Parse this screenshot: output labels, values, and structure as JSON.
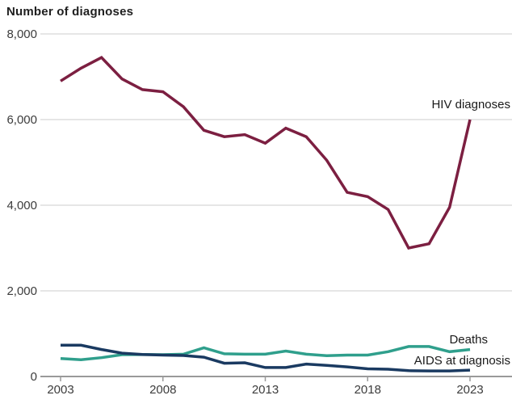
{
  "title": "Number of diagnoses",
  "colors": {
    "hiv_line": "#7c1f41",
    "deaths_line": "#2f9f8c",
    "aids_line": "#1a3a61",
    "gridline": "#d7d7d7",
    "axis": "#9a9a9a",
    "tick_text": "#3c3c3c",
    "title_text": "#1f1f1f",
    "background": "#ffffff"
  },
  "chart_data": {
    "type": "line",
    "title": "Number of diagnoses",
    "xlabel": "",
    "ylabel": "Number of diagnoses",
    "x": [
      2003,
      2004,
      2005,
      2006,
      2007,
      2008,
      2009,
      2010,
      2011,
      2012,
      2013,
      2014,
      2015,
      2016,
      2017,
      2018,
      2019,
      2020,
      2021,
      2022,
      2023
    ],
    "series": [
      {
        "name": "HIV diagnoses",
        "color": "#7c1f41",
        "values": [
          6900,
          7200,
          7450,
          6950,
          6700,
          6650,
          6300,
          5750,
          5600,
          5650,
          5450,
          5800,
          5600,
          5050,
          4300,
          4200,
          3900,
          3000,
          3100,
          3950,
          6000
        ]
      },
      {
        "name": "Deaths",
        "color": "#2f9f8c",
        "values": [
          420,
          390,
          440,
          510,
          515,
          510,
          520,
          670,
          530,
          520,
          520,
          595,
          520,
          485,
          500,
          500,
          580,
          700,
          700,
          580,
          630
        ]
      },
      {
        "name": "AIDS at diagnosis",
        "color": "#1a3a61",
        "values": [
          730,
          730,
          630,
          545,
          515,
          500,
          490,
          450,
          310,
          320,
          210,
          210,
          290,
          260,
          225,
          180,
          170,
          135,
          130,
          130,
          150
        ]
      }
    ],
    "xticks": [
      2003,
      2008,
      2013,
      2018,
      2023
    ],
    "xtick_labels": [
      "2003",
      "2008",
      "2013",
      "2018",
      "2023"
    ],
    "yticks": [
      0,
      2000,
      4000,
      6000,
      8000
    ],
    "ytick_labels": [
      "0",
      "2,000",
      "4,000",
      "6,000",
      "8,000"
    ],
    "xlim": [
      2003,
      2023
    ],
    "ylim": [
      0,
      8000
    ],
    "grid": "horizontal",
    "legend": "inline-end-labels"
  }
}
